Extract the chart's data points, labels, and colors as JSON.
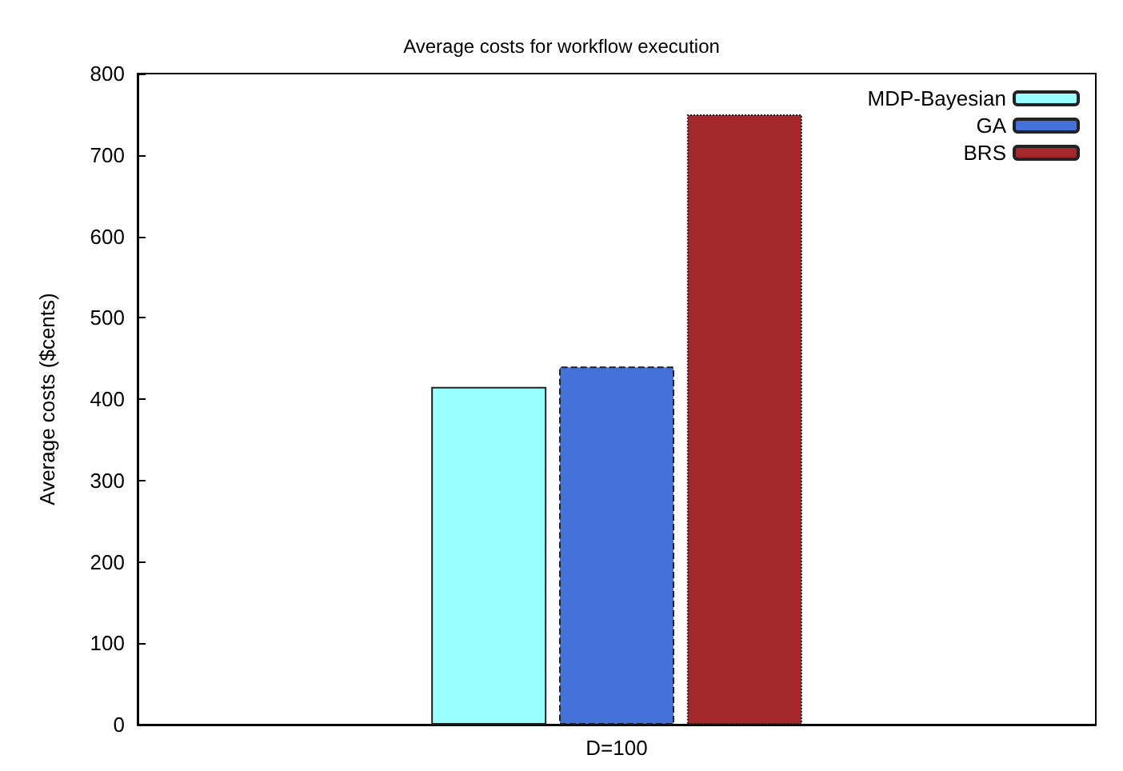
{
  "chart_data": {
    "type": "bar",
    "title": "Average costs for workflow execution",
    "ylabel": "Average costs ($cents)",
    "categories": [
      "D=100"
    ],
    "series": [
      {
        "name": "MDP-Bayesian",
        "color": "#99ffff",
        "values": [
          415
        ],
        "line_style": "solid"
      },
      {
        "name": "GA",
        "color": "#4472d8",
        "values": [
          440
        ],
        "line_style": "dashed"
      },
      {
        "name": "BRS",
        "color": "#a4282b",
        "values": [
          750
        ],
        "line_style": "dotted"
      }
    ],
    "ylim": [
      0,
      800
    ],
    "yticks": [
      0,
      100,
      200,
      300,
      400,
      500,
      600,
      700,
      800
    ],
    "grid": false,
    "legend": "top right"
  }
}
